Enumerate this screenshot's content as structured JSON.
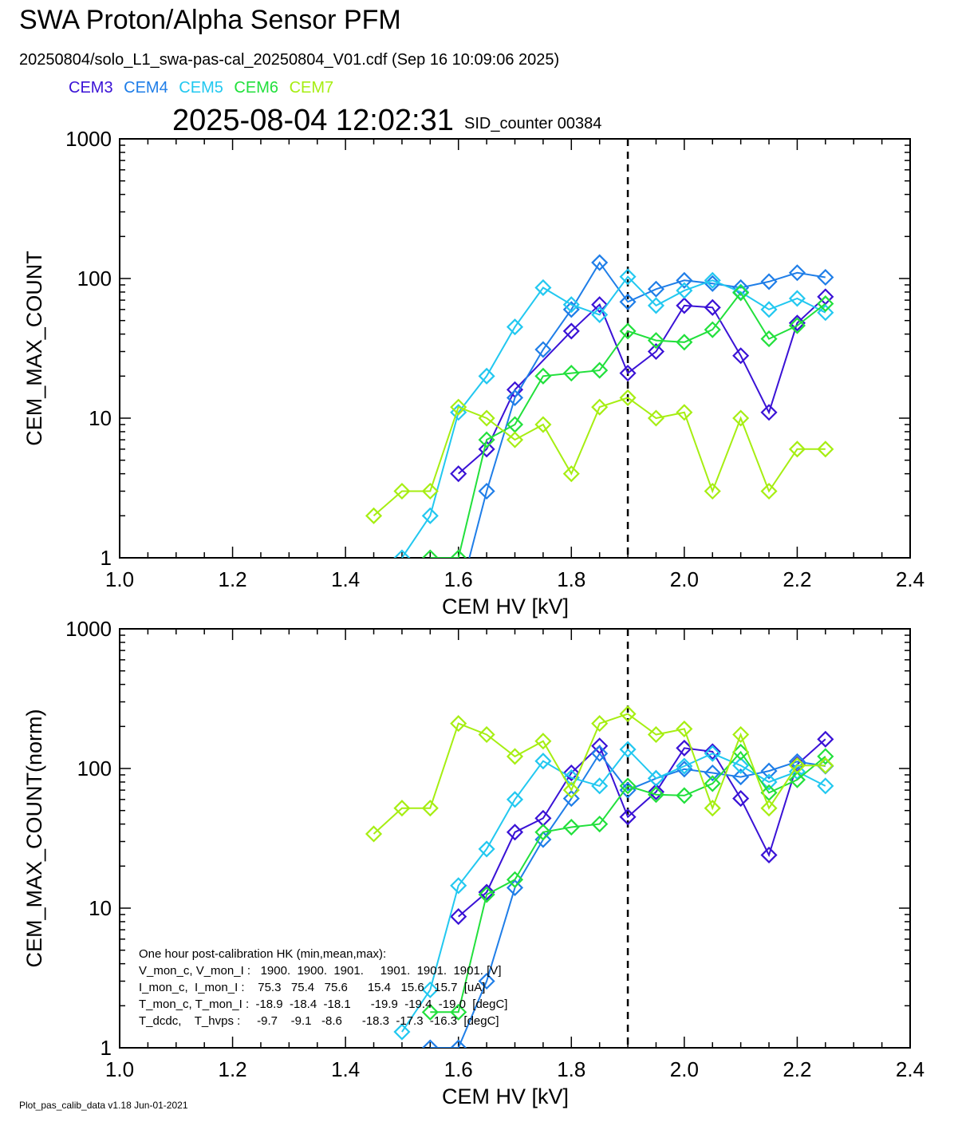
{
  "header": {
    "title": "SWA Proton/Alpha Sensor PFM",
    "subtitle": "20250804/solo_L1_swa-pas-cal_20250804_V01.cdf  (Sep 16 10:09:06 2025)",
    "timestamp": "2025-08-04 12:02:31",
    "sid_counter": "SID_counter 00384"
  },
  "legend": [
    {
      "name": "CEM3",
      "color": "#3a12d6"
    },
    {
      "name": "CEM4",
      "color": "#1f7ee8"
    },
    {
      "name": "CEM5",
      "color": "#22c8f0"
    },
    {
      "name": "CEM6",
      "color": "#22e03c"
    },
    {
      "name": "CEM7",
      "color": "#a6ee12"
    }
  ],
  "footer": "Plot_pas_calib_data v1.18 Jun-01-2021",
  "hk_box": {
    "lines": [
      "One hour post-calibration HK (min,mean,max):",
      "V_mon_c, V_mon_I :   1900.  1900.  1901.     1901.  1901.  1901. [V]",
      "I_mon_c,  I_mon_I :    75.3   75.4   75.6      15.4   15.6   15.7  [uA]",
      "T_mon_c, T_mon_I :  -18.9  -18.4  -18.1      -19.9  -19.4  -19.0  [degC]",
      "T_dcdc,    T_hvps :     -9.7    -9.1   -8.6      -18.3  -17.3  -16.3  [degC]"
    ]
  },
  "chart_data": [
    {
      "type": "line",
      "xlabel": "CEM HV [kV]",
      "ylabel": "CEM_MAX_COUNT",
      "xlim": [
        1.0,
        2.4
      ],
      "ylim": [
        1,
        1000
      ],
      "yscale": "log",
      "xticks": [
        "1.0",
        "1.2",
        "1.4",
        "1.6",
        "1.8",
        "2.0",
        "2.2",
        "2.4"
      ],
      "yticks": [
        "1",
        "10",
        "100",
        "1000"
      ],
      "vline": 1.9,
      "series": [
        {
          "name": "CEM3",
          "color": "#3a12d6",
          "x": [
            1.6,
            1.65,
            1.7,
            1.8,
            1.85,
            1.9,
            1.95,
            2.0,
            2.05,
            2.1,
            2.15,
            2.2,
            2.25
          ],
          "y": [
            4,
            6,
            16,
            42,
            65,
            21,
            30,
            64,
            62,
            28,
            11,
            48,
            74
          ]
        },
        {
          "name": "CEM4",
          "color": "#1f7ee8",
          "x": [
            1.6,
            1.65,
            1.7,
            1.75,
            1.8,
            1.85,
            1.9,
            1.95,
            2.0,
            2.05,
            2.1,
            2.15,
            2.2,
            2.25
          ],
          "y": [
            0.5,
            3,
            14,
            31,
            60,
            130,
            68,
            84,
            97,
            92,
            86,
            95,
            110,
            102
          ]
        },
        {
          "name": "CEM5",
          "color": "#22c8f0",
          "x": [
            1.5,
            1.55,
            1.6,
            1.65,
            1.7,
            1.75,
            1.8,
            1.85,
            1.9,
            1.95,
            2.0,
            2.05,
            2.1,
            2.15,
            2.2,
            2.25
          ],
          "y": [
            1,
            2,
            11,
            20,
            45,
            86,
            65,
            55,
            103,
            64,
            82,
            97,
            80,
            60,
            72,
            57
          ]
        },
        {
          "name": "CEM6",
          "color": "#22e03c",
          "x": [
            1.55,
            1.6,
            1.65,
            1.7,
            1.75,
            1.8,
            1.85,
            1.9,
            1.95,
            2.0,
            2.05,
            2.1,
            2.15,
            2.2,
            2.25
          ],
          "y": [
            1,
            1,
            7,
            9,
            20,
            21,
            22,
            42,
            36,
            35,
            43,
            79,
            37,
            46,
            66
          ]
        },
        {
          "name": "CEM7",
          "color": "#a6ee12",
          "x": [
            1.45,
            1.5,
            1.55,
            1.6,
            1.65,
            1.7,
            1.75,
            1.8,
            1.85,
            1.9,
            1.95,
            2.0,
            2.05,
            2.1,
            2.15,
            2.2,
            2.25
          ],
          "y": [
            2,
            3,
            3,
            12,
            10,
            7,
            9,
            4,
            12,
            14,
            10,
            11,
            3,
            10,
            3,
            6,
            6
          ]
        }
      ]
    },
    {
      "type": "line",
      "xlabel": "CEM HV [kV]",
      "ylabel": "CEM_MAX_COUNT(norm)",
      "xlim": [
        1.0,
        2.4
      ],
      "ylim": [
        1,
        1000
      ],
      "yscale": "log",
      "xticks": [
        "1.0",
        "1.2",
        "1.4",
        "1.6",
        "1.8",
        "2.0",
        "2.2",
        "2.4"
      ],
      "yticks": [
        "1",
        "10",
        "100",
        "1000"
      ],
      "vline": 1.9,
      "series": [
        {
          "name": "CEM3",
          "color": "#3a12d6",
          "x": [
            1.6,
            1.65,
            1.7,
            1.75,
            1.8,
            1.85,
            1.9,
            1.95,
            2.0,
            2.05,
            2.1,
            2.15,
            2.2,
            2.25
          ],
          "y": [
            8.7,
            13,
            35,
            44,
            93,
            145,
            45,
            68,
            140,
            132,
            61,
            24,
            107,
            162
          ]
        },
        {
          "name": "CEM4",
          "color": "#1f7ee8",
          "x": [
            1.55,
            1.6,
            1.65,
            1.7,
            1.75,
            1.8,
            1.85,
            1.9,
            1.95,
            2.0,
            2.05,
            2.1,
            2.15,
            2.2,
            2.25
          ],
          "y": [
            1,
            1,
            3,
            14,
            31,
            61,
            128,
            70,
            85,
            99,
            93,
            87,
            96,
            112,
            104
          ]
        },
        {
          "name": "CEM5",
          "color": "#22c8f0",
          "x": [
            1.5,
            1.55,
            1.6,
            1.65,
            1.7,
            1.75,
            1.8,
            1.85,
            1.9,
            1.95,
            2.0,
            2.05,
            2.1,
            2.15,
            2.2,
            2.25
          ],
          "y": [
            1.3,
            2.6,
            14.5,
            26.5,
            60,
            113,
            86,
            75,
            137,
            85,
            104,
            128,
            105,
            80,
            95,
            75
          ]
        },
        {
          "name": "CEM6",
          "color": "#22e03c",
          "x": [
            1.55,
            1.6,
            1.65,
            1.7,
            1.75,
            1.8,
            1.85,
            1.9,
            1.95,
            2.0,
            2.05,
            2.1,
            2.15,
            2.2,
            2.25
          ],
          "y": [
            1.8,
            1.8,
            12.5,
            16,
            35,
            38,
            40,
            75,
            65,
            64,
            78,
            131,
            67,
            83,
            122
          ]
        },
        {
          "name": "CEM7",
          "color": "#a6ee12",
          "x": [
            1.45,
            1.5,
            1.55,
            1.6,
            1.65,
            1.7,
            1.75,
            1.8,
            1.85,
            1.9,
            1.95,
            2.0,
            2.05,
            2.1,
            2.15,
            2.2,
            2.25
          ],
          "y": [
            34,
            52,
            52,
            210,
            175,
            122,
            157,
            70,
            210,
            246,
            175,
            192,
            52,
            175,
            52,
            105,
            105
          ]
        }
      ]
    }
  ]
}
